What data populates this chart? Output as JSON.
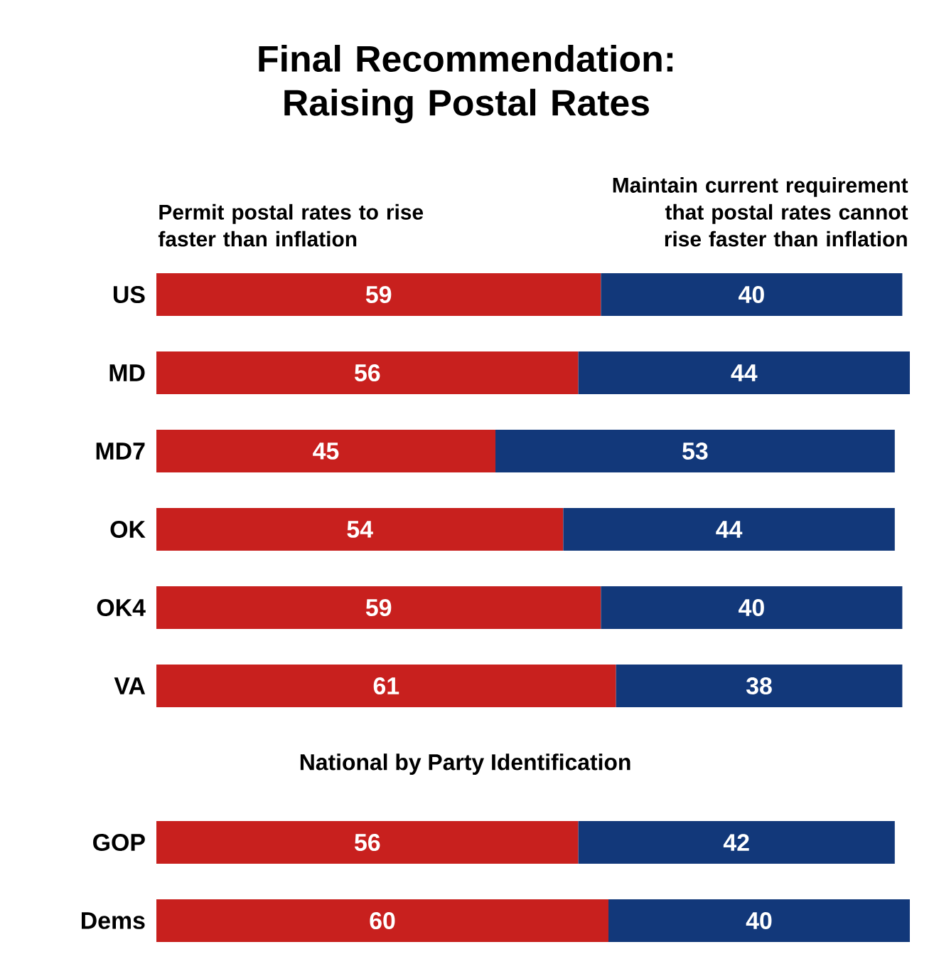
{
  "chart_data": {
    "type": "bar",
    "orientation": "horizontal",
    "stacked": true,
    "title": "Final Recommendation: Raising Postal Rates",
    "categories": [
      "US",
      "MD",
      "MD7",
      "OK",
      "OK4",
      "VA",
      null,
      "GOP",
      "Dems"
    ],
    "series": [
      {
        "name": "Permit postal rates to rise faster than inflation",
        "color": "#c8201e",
        "values": [
          59,
          56,
          45,
          54,
          59,
          61,
          null,
          56,
          60
        ]
      },
      {
        "name": "Maintain current requirement that postal rates cannot rise faster than inflation",
        "color": "#12387a",
        "values": [
          40,
          44,
          53,
          44,
          40,
          38,
          null,
          42,
          40
        ]
      }
    ],
    "tick_labels": "y",
    "data_labels": true,
    "annotations": [
      "National by Party Identification"
    ]
  }
}
